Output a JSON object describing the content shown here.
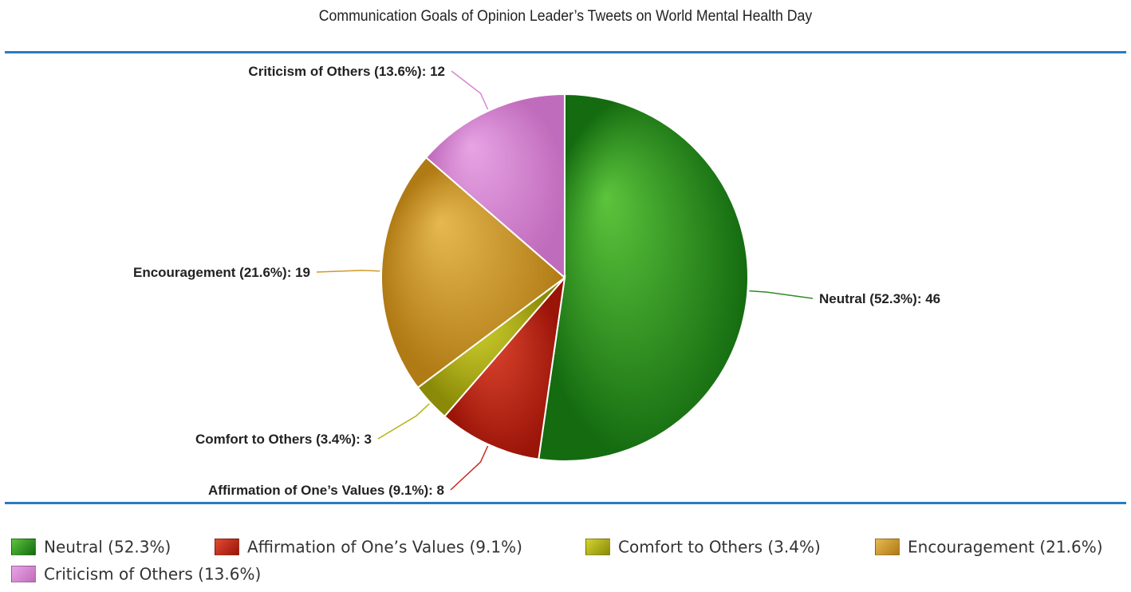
{
  "chart_data": {
    "type": "pie",
    "title": "Communication Goals of Opinion Leader’s Tweets on World Mental Health Day",
    "slices": [
      {
        "name": "Neutral",
        "value": 46,
        "percent": 52.3,
        "label": "Neutral (52.3%): 46",
        "legend": "Neutral (52.3%)",
        "color": "#2e8b22",
        "color_light": "#5cc43c",
        "color_dark": "#146b10"
      },
      {
        "name": "Affirmation of One’s Values",
        "value": 8,
        "percent": 9.1,
        "label": "Affirmation of One’s Values (9.1%): 8",
        "legend": "Affirmation of One’s Values (9.1%)",
        "color": "#c8281a",
        "color_light": "#e24a32",
        "color_dark": "#9a1408"
      },
      {
        "name": "Comfort to Others",
        "value": 3,
        "percent": 3.4,
        "label": "Comfort to Others (3.4%): 3",
        "legend": "Comfort to Others (3.4%)",
        "color": "#b4b414",
        "color_light": "#d4d432",
        "color_dark": "#8a8a08"
      },
      {
        "name": "Encouragement",
        "value": 19,
        "percent": 21.6,
        "label": "Encouragement (21.6%): 19",
        "legend": "Encouragement (21.6%)",
        "color": "#d19a2a",
        "color_light": "#e6b850",
        "color_dark": "#b07a14"
      },
      {
        "name": "Criticism of Others",
        "value": 12,
        "percent": 13.6,
        "label": "Criticism of Others (13.6%): 12",
        "legend": "Criticism of Others (13.6%)",
        "color": "#d985d4",
        "color_light": "#e8a4e4",
        "color_dark": "#c06cbc"
      }
    ],
    "start": "top",
    "direction": "clockwise",
    "legend_position": "bottom"
  }
}
